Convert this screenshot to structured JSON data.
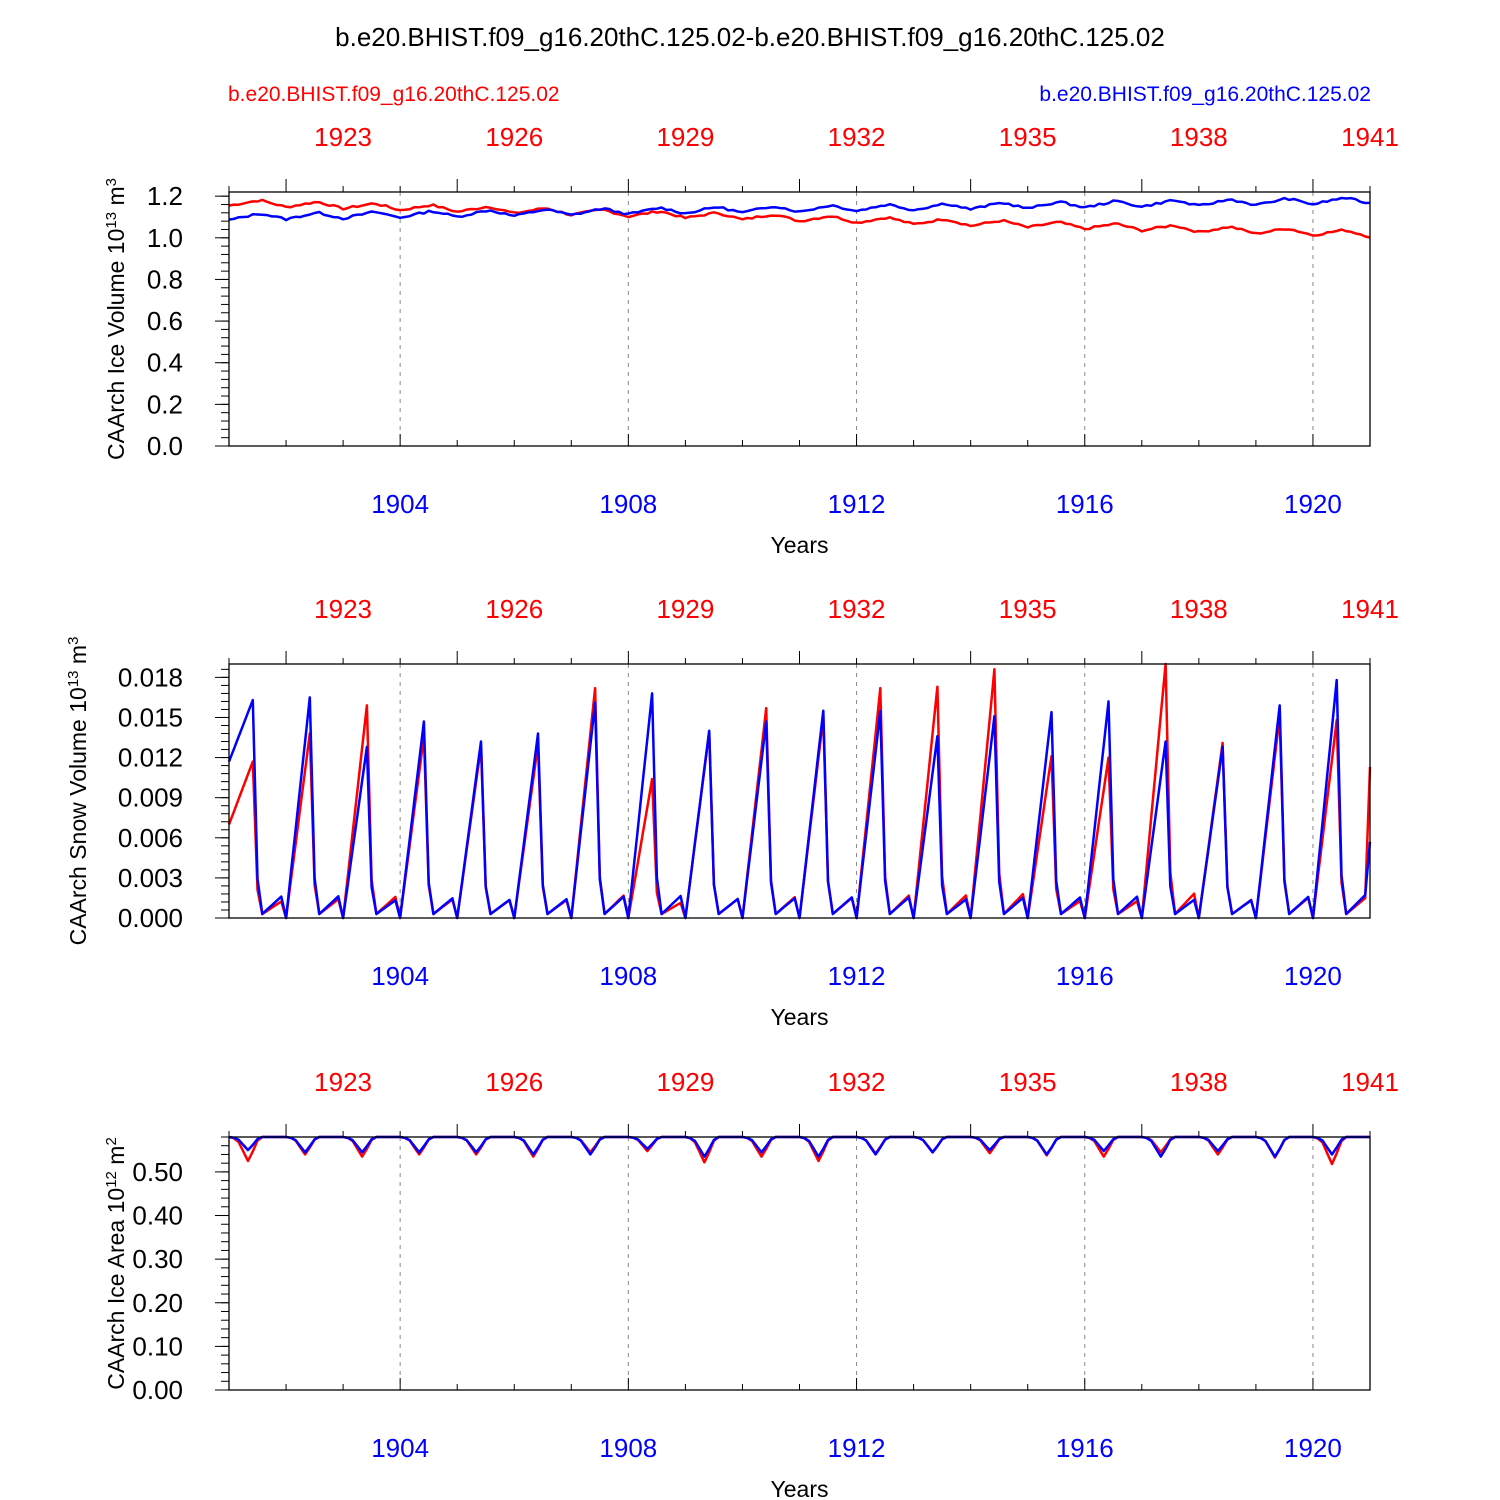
{
  "title": "b.e20.BHIST.f09_g16.20thC.125.02-b.e20.BHIST.f09_g16.20thC.125.02",
  "legend": {
    "case_a": "b.e20.BHIST.f09_g16.20thC.125.02",
    "case_b": "b.e20.BHIST.f09_g16.20thC.125.02"
  },
  "colors": {
    "case_a": "#ff0000",
    "case_b": "#0000ff",
    "axis": "#000000",
    "grid": "#888888"
  },
  "chart_data": [
    {
      "type": "line",
      "panel": "ice_volume",
      "ylabel": "CAArch Ice Volume 10",
      "ylabel_exp": "13",
      "ylabel_unit": " m",
      "ylabel_unit_exp": "3",
      "xlabel": "Years",
      "ylim": [
        0,
        1.22
      ],
      "yticks": [
        0.0,
        0.2,
        0.4,
        0.6,
        0.8,
        1.0,
        1.2
      ],
      "ytick_labels": [
        "0.0",
        "0.2",
        "0.4",
        "0.6",
        "0.8",
        "1.0",
        "1.2"
      ],
      "xlim_bottom": [
        1901,
        1921
      ],
      "xticks_bottom": [
        1904,
        1908,
        1912,
        1916,
        1920
      ],
      "xticks_bottom_labels": [
        "1904",
        "1908",
        "1912",
        "1916",
        "1920"
      ],
      "xticks_top_labels": [
        "1923",
        "1926",
        "1929",
        "1932",
        "1935",
        "1938",
        "1941"
      ],
      "series": [
        {
          "name": "b.e20.BHIST.f09_g16.20thC.125.02 (top axis, 1921-1941)",
          "color": "red",
          "trend_start": 1.17,
          "trend_end": 1.02,
          "seasonal_amp": 0.03
        },
        {
          "name": "b.e20.BHIST.f09_g16.20thC.125.02 (bottom axis, 1901-1921)",
          "color": "blue",
          "trend_start": 1.1,
          "trend_end": 1.18,
          "seasonal_amp": 0.03
        }
      ]
    },
    {
      "type": "line",
      "panel": "snow_volume",
      "ylabel": "CAArch Snow Volume 10",
      "ylabel_exp": "13",
      "ylabel_unit": " m",
      "ylabel_unit_exp": "3",
      "xlabel": "Years",
      "ylim": [
        0,
        0.019
      ],
      "yticks": [
        0,
        0.003,
        0.006,
        0.009,
        0.012,
        0.015,
        0.018
      ],
      "ytick_labels": [
        "0.000",
        "0.003",
        "0.006",
        "0.009",
        "0.012",
        "0.015",
        "0.018"
      ],
      "xlim_bottom": [
        1901,
        1921
      ],
      "xticks_bottom": [
        1904,
        1908,
        1912,
        1916,
        1920
      ],
      "xticks_bottom_labels": [
        "1904",
        "1908",
        "1912",
        "1916",
        "1920"
      ],
      "xticks_top_labels": [
        "1923",
        "1926",
        "1929",
        "1932",
        "1935",
        "1938",
        "1941"
      ],
      "series": [
        {
          "name": "b.e20.BHIST.f09_g16.20thC.125.02 (top axis, 1921-1941)",
          "color": "red",
          "annual_peaks": [
            0.0117,
            0.0138,
            0.0159,
            0.0136,
            0.0128,
            0.013,
            0.0172,
            0.0104,
            0.0139,
            0.0157,
            0.015,
            0.0172,
            0.0173,
            0.0186,
            0.0121,
            0.012,
            0.019,
            0.0131,
            0.0151,
            0.0148
          ],
          "start_value": 0.007,
          "end_value": 0.0113
        },
        {
          "name": "b.e20.BHIST.f09_g16.20thC.125.02 (bottom axis, 1901-1921)",
          "color": "blue",
          "annual_peaks": [
            0.0163,
            0.0165,
            0.0128,
            0.0147,
            0.0132,
            0.0138,
            0.0161,
            0.0168,
            0.014,
            0.0147,
            0.0155,
            0.0155,
            0.0136,
            0.0151,
            0.0154,
            0.0162,
            0.0132,
            0.0128,
            0.0159,
            0.0178
          ],
          "start_value": 0.0117,
          "end_value": 0.0057
        }
      ]
    },
    {
      "type": "line",
      "panel": "ice_area",
      "ylabel": "CAArch Ice Area 10",
      "ylabel_exp": "12",
      "ylabel_unit": " m",
      "ylabel_unit_exp": "2",
      "xlabel": "Years",
      "ylim": [
        0,
        0.58
      ],
      "yticks": [
        0.0,
        0.1,
        0.2,
        0.3,
        0.4,
        0.5
      ],
      "ytick_labels": [
        "0.00",
        "0.10",
        "0.20",
        "0.30",
        "0.40",
        "0.50"
      ],
      "xlim_bottom": [
        1901,
        1921
      ],
      "xticks_bottom": [
        1904,
        1908,
        1912,
        1916,
        1920
      ],
      "xticks_bottom_labels": [
        "1904",
        "1908",
        "1912",
        "1916",
        "1920"
      ],
      "xticks_top_labels": [
        "1923",
        "1926",
        "1929",
        "1932",
        "1935",
        "1938",
        "1941"
      ],
      "series": [
        {
          "name": "b.e20.BHIST.f09_g16.20thC.125.02 (top axis, 1921-1941)",
          "color": "red",
          "max_value": 0.58,
          "annual_minima": [
            0.525,
            0.54,
            0.535,
            0.54,
            0.54,
            0.535,
            0.545,
            0.548,
            0.522,
            0.535,
            0.525,
            0.542,
            0.545,
            0.543,
            0.538,
            0.535,
            0.545,
            0.54,
            0.533,
            0.518
          ]
        },
        {
          "name": "b.e20.BHIST.f09_g16.20thC.125.02 (bottom axis, 1901-1921)",
          "color": "blue",
          "max_value": 0.58,
          "annual_minima": [
            0.55,
            0.545,
            0.545,
            0.545,
            0.545,
            0.54,
            0.54,
            0.553,
            0.535,
            0.545,
            0.535,
            0.54,
            0.545,
            0.55,
            0.54,
            0.548,
            0.535,
            0.548,
            0.535,
            0.54
          ]
        }
      ]
    }
  ]
}
